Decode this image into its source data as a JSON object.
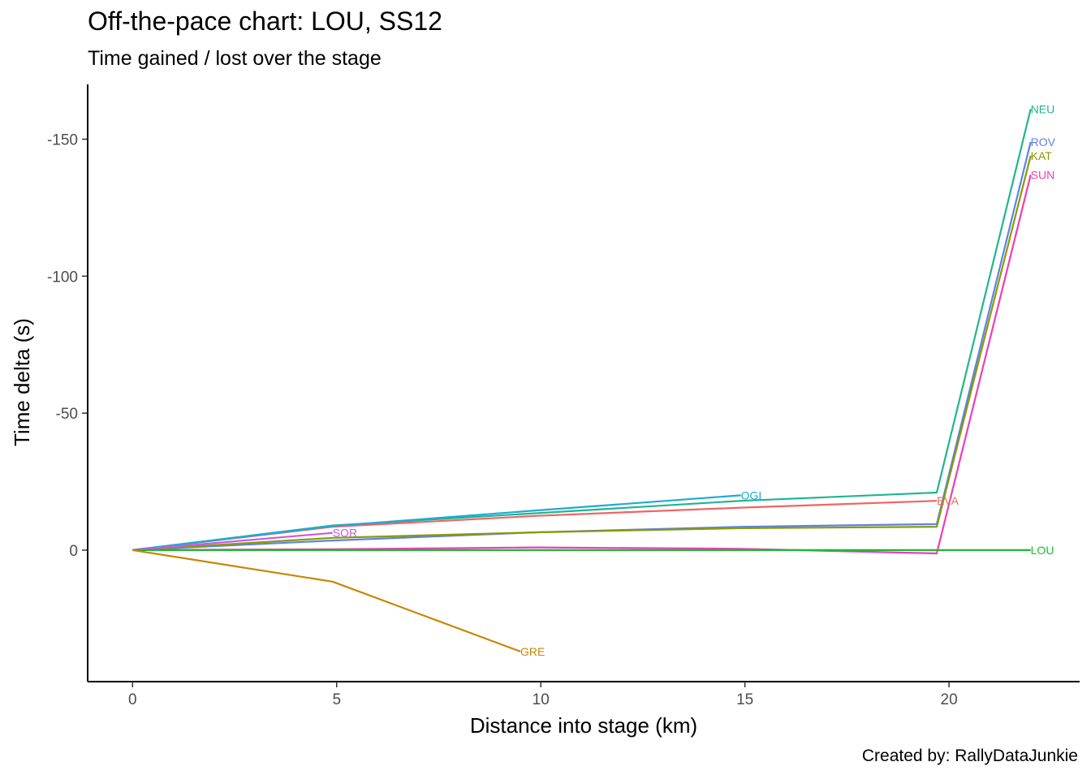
{
  "chart_data": {
    "type": "line",
    "title": "Off-the-pace chart: LOU, SS12",
    "subtitle": "Time gained / lost over the stage",
    "caption": "Created by: RallyDataJunkie",
    "xlabel": "Distance into stage (km)",
    "ylabel": "Time delta (s)",
    "xlim": [
      -1.1,
      23.2
    ],
    "ylim": [
      48,
      -170
    ],
    "y_reversed": true,
    "x_ticks": [
      0,
      5,
      10,
      15,
      20
    ],
    "y_ticks": [
      -150,
      -100,
      -50,
      0
    ],
    "grid": false,
    "legend": "none",
    "series": [
      {
        "name": "NEU",
        "color": "#1FB58F",
        "label_at_end": true,
        "points": [
          [
            0,
            0
          ],
          [
            4.9,
            -9
          ],
          [
            14.9,
            -18
          ],
          [
            19.7,
            -21
          ],
          [
            22.0,
            -161
          ]
        ]
      },
      {
        "name": "ROV",
        "color": "#5B82E8",
        "label_at_end": true,
        "points": [
          [
            0,
            0
          ],
          [
            4.9,
            -3.5
          ],
          [
            9.9,
            -6.5
          ],
          [
            14.9,
            -8.5
          ],
          [
            19.7,
            -9.5
          ],
          [
            22.0,
            -149
          ]
        ]
      },
      {
        "name": "KAT",
        "color": "#8A9A00",
        "label_at_end": true,
        "points": [
          [
            0,
            0
          ],
          [
            4.9,
            -4.5
          ],
          [
            9.9,
            -6.5
          ],
          [
            14.9,
            -8
          ],
          [
            19.7,
            -8.5
          ],
          [
            22.0,
            -144
          ]
        ]
      },
      {
        "name": "SUN",
        "color": "#F03CB6",
        "label_at_end": true,
        "points": [
          [
            0,
            0
          ],
          [
            4.9,
            -0.3
          ],
          [
            9.9,
            -1
          ],
          [
            14.9,
            -0.5
          ],
          [
            19.7,
            1.2
          ],
          [
            22.0,
            -137
          ]
        ]
      },
      {
        "name": "EVA",
        "color": "#F06464",
        "label_at_end": true,
        "points": [
          [
            0,
            0
          ],
          [
            4.9,
            -8.5
          ],
          [
            9.9,
            -12.5
          ],
          [
            14.9,
            -15.5
          ],
          [
            19.7,
            -18
          ]
        ]
      },
      {
        "name": "OGI",
        "color": "#1EA9D8",
        "label_at_end": true,
        "points": [
          [
            0,
            0
          ],
          [
            4.9,
            -8.8
          ],
          [
            9.9,
            -14.5
          ],
          [
            14.9,
            -20
          ]
        ]
      },
      {
        "name": "SOR",
        "color": "#C45CE8",
        "label_at_end": true,
        "points": [
          [
            0,
            0
          ],
          [
            4.9,
            -6.3
          ]
        ]
      },
      {
        "name": "LOU",
        "color": "#1DB832",
        "label_at_end": true,
        "points": [
          [
            0,
            0
          ],
          [
            4.9,
            0
          ],
          [
            9.9,
            0
          ],
          [
            14.9,
            0
          ],
          [
            19.7,
            0
          ],
          [
            22.0,
            0
          ]
        ]
      },
      {
        "name": "GRE",
        "color": "#C88500",
        "label_at_end": true,
        "points": [
          [
            0,
            0
          ],
          [
            4.9,
            11.5
          ],
          [
            9.5,
            37
          ]
        ]
      }
    ]
  }
}
